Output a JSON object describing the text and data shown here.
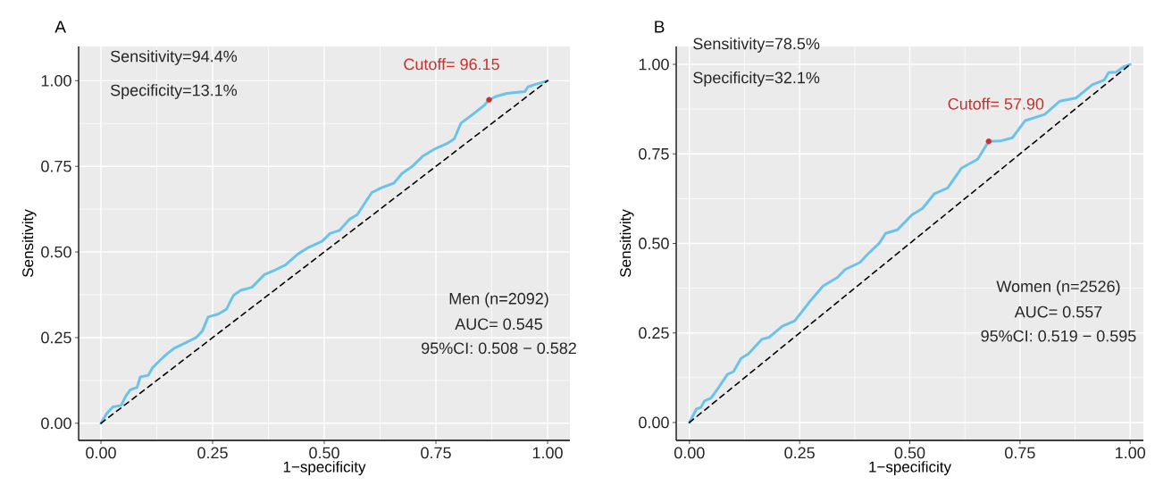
{
  "chart_data": [
    {
      "type": "line",
      "title": "A",
      "xlabel": "1−specificity",
      "ylabel": "Sensitivity",
      "annotations": [
        "Sensitivity=94.4%",
        "Specificity=13.1%",
        {
          "text": "Cutoff= 96.15",
          "x": 0.869,
          "y": 0.944
        },
        "Men (n=2092)",
        "AUC= 0.545",
        "95%CI: 0.508 − 0.582"
      ],
      "xlim": [
        -0.05,
        1.05
      ],
      "ylim": [
        -0.05,
        1.1
      ],
      "xticks": [
        {
          "value": 0,
          "label": "0.00"
        },
        {
          "value": 0.25,
          "label": "0.25"
        },
        {
          "value": 0.5,
          "label": "0.50"
        },
        {
          "value": 0.75,
          "label": "0.75"
        },
        {
          "value": 1,
          "label": "1.00"
        }
      ],
      "yticks": [
        {
          "value": 0,
          "label": "0.00"
        },
        {
          "value": 0.25,
          "label": "0.25"
        },
        {
          "value": 0.5,
          "label": "0.50"
        },
        {
          "value": 0.75,
          "label": "0.75"
        },
        {
          "value": 1,
          "label": "1.00"
        }
      ],
      "grid": true,
      "series": [
        {
          "color": "#6cc3ea",
          "x": [
            0,
            0.013,
            0.027,
            0.045,
            0.056,
            0.066,
            0.081,
            0.088,
            0.106,
            0.116,
            0.134,
            0.149,
            0.163,
            0.191,
            0.213,
            0.227,
            0.24,
            0.263,
            0.281,
            0.297,
            0.313,
            0.338,
            0.366,
            0.391,
            0.413,
            0.441,
            0.463,
            0.495,
            0.513,
            0.534,
            0.556,
            0.574,
            0.606,
            0.627,
            0.656,
            0.674,
            0.699,
            0.72,
            0.749,
            0.774,
            0.791,
            0.806,
            0.834,
            0.859,
            0.869,
            0.884,
            0.909,
            0.949,
            0.956,
            0.97,
            1
          ],
          "values": [
            0,
            0.029,
            0.048,
            0.052,
            0.08,
            0.098,
            0.105,
            0.135,
            0.14,
            0.163,
            0.186,
            0.204,
            0.218,
            0.236,
            0.25,
            0.269,
            0.31,
            0.319,
            0.333,
            0.374,
            0.388,
            0.397,
            0.434,
            0.448,
            0.462,
            0.494,
            0.512,
            0.531,
            0.554,
            0.563,
            0.595,
            0.609,
            0.673,
            0.687,
            0.701,
            0.729,
            0.752,
            0.779,
            0.802,
            0.816,
            0.83,
            0.876,
            0.903,
            0.929,
            0.944,
            0.954,
            0.963,
            0.968,
            0.982,
            0.988,
            1
          ]
        },
        {
          "type": "line",
          "color": "#000000",
          "line_style": "dashed",
          "x": [
            0,
            1
          ],
          "values": [
            0,
            1
          ]
        },
        {
          "type": "scatter",
          "color": "#c8302c",
          "marker": "circle",
          "x": [
            0.869
          ],
          "values": [
            0.944
          ]
        }
      ]
    },
    {
      "type": "line",
      "title": "B",
      "xlabel": "1−specificity",
      "ylabel": "Sensitivity",
      "annotations": [
        "Sensitivity=78.5%",
        "Specificity=32.1%",
        {
          "text": "Cutoff= 57.90",
          "x": 0.679,
          "y": 0.785
        },
        "Women (n=2526)",
        "AUC= 0.557",
        "95%CI: 0.519 − 0.595"
      ],
      "xlim": [
        -0.03,
        1.03
      ],
      "ylim": [
        -0.05,
        1.05
      ],
      "xticks": [
        {
          "value": 0,
          "label": "0.00"
        },
        {
          "value": 0.25,
          "label": "0.25"
        },
        {
          "value": 0.5,
          "label": "0.50"
        },
        {
          "value": 0.75,
          "label": "0.75"
        },
        {
          "value": 1,
          "label": "1.00"
        }
      ],
      "yticks": [
        {
          "value": 0,
          "label": "0.00"
        },
        {
          "value": 0.25,
          "label": "0.25"
        },
        {
          "value": 0.5,
          "label": "0.50"
        },
        {
          "value": 0.75,
          "label": "0.75"
        },
        {
          "value": 1,
          "label": "1.00"
        }
      ],
      "grid": true,
      "series": [
        {
          "color": "#6cc3ea",
          "x": [
            0,
            0.016,
            0.026,
            0.034,
            0.049,
            0.063,
            0.086,
            0.1,
            0.117,
            0.134,
            0.164,
            0.181,
            0.211,
            0.239,
            0.272,
            0.303,
            0.336,
            0.353,
            0.387,
            0.407,
            0.431,
            0.445,
            0.472,
            0.505,
            0.529,
            0.556,
            0.586,
            0.617,
            0.654,
            0.679,
            0.705,
            0.733,
            0.762,
            0.806,
            0.84,
            0.877,
            0.914,
            0.941,
            0.951,
            0.968,
            0.985,
            1
          ],
          "values": [
            0,
            0.038,
            0.042,
            0.06,
            0.068,
            0.092,
            0.134,
            0.142,
            0.179,
            0.192,
            0.232,
            0.238,
            0.269,
            0.284,
            0.336,
            0.381,
            0.405,
            0.427,
            0.447,
            0.473,
            0.501,
            0.528,
            0.538,
            0.58,
            0.598,
            0.639,
            0.655,
            0.71,
            0.735,
            0.785,
            0.786,
            0.795,
            0.843,
            0.86,
            0.897,
            0.906,
            0.943,
            0.956,
            0.977,
            0.978,
            0.993,
            1
          ]
        },
        {
          "type": "line",
          "color": "#000000",
          "line_style": "dashed",
          "x": [
            0,
            1
          ],
          "values": [
            0,
            1
          ]
        },
        {
          "type": "scatter",
          "color": "#c8302c",
          "marker": "circle",
          "x": [
            0.679
          ],
          "values": [
            0.785
          ]
        }
      ]
    }
  ]
}
